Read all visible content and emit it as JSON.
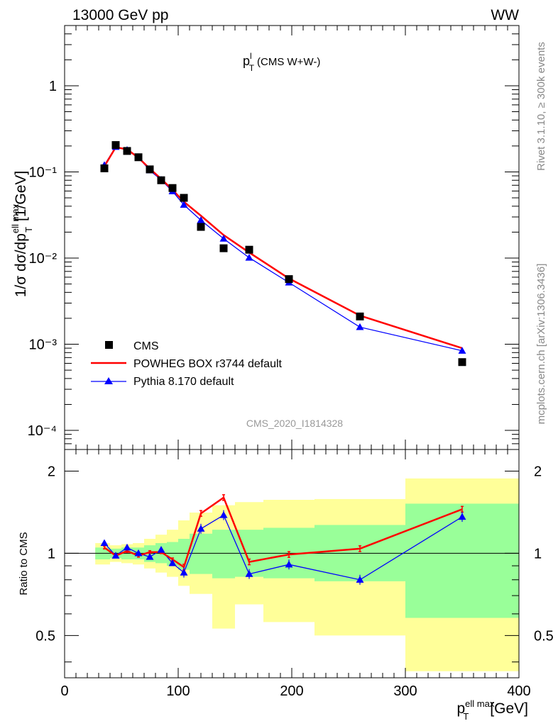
{
  "header": {
    "left": "13000 GeV pp",
    "right": "WW"
  },
  "side_labels": {
    "top": "Rivet 3.1.10, ≥ 300k events",
    "bottom": "mcplots.cern.ch [arXiv:1306.3436]"
  },
  "plot_title": {
    "main": "p",
    "sup": "l",
    "sub": "T",
    "rest": "(CMS W+W-)"
  },
  "watermark": "CMS_2020_I1814328",
  "y_label_upper": {
    "prefix": "1/σ dσ/dp",
    "sup": "ell max",
    "sub": "T",
    "unit": "[1/GeV]"
  },
  "y_label_lower": "Ratio to CMS",
  "x_label": {
    "main": "p",
    "sup": "ell max",
    "sub": "T",
    "unit": "[GeV]"
  },
  "colors": {
    "data": "#000000",
    "powheg": "#ff0000",
    "pythia": "#0000ff",
    "band_inner": "#99ff99",
    "band_outer": "#ffff99"
  },
  "chart_data": [
    {
      "type": "scatter",
      "panel": "main",
      "y_scale": "log",
      "xlim": [
        0,
        400
      ],
      "ylim": [
        6e-05,
        5
      ],
      "y_tick_labels": [
        "10⁻⁴",
        "10⁻³",
        "10⁻²",
        "10⁻¹",
        "1"
      ],
      "y_tick_values": [
        0.0001,
        0.001,
        0.01,
        0.1,
        1
      ],
      "legend_position": "bottom-left",
      "series": [
        {
          "name": "CMS",
          "style": "markers",
          "x": [
            35,
            45,
            55,
            65,
            75,
            85,
            95,
            105,
            120,
            140,
            162.5,
            197.5,
            260,
            350
          ],
          "values": [
            0.11,
            0.205,
            0.175,
            0.148,
            0.107,
            0.08,
            0.065,
            0.05,
            0.023,
            0.013,
            0.0125,
            0.0057,
            0.0021,
            0.00062
          ]
        },
        {
          "name": "POWHEG BOX r3744 default",
          "style": "line",
          "x": [
            35,
            45,
            55,
            65,
            75,
            85,
            95,
            105,
            120,
            140,
            162.5,
            197.5,
            260,
            350
          ],
          "values": [
            0.116,
            0.193,
            0.183,
            0.146,
            0.109,
            0.083,
            0.062,
            0.045,
            0.031,
            0.0185,
            0.0116,
            0.0058,
            0.00215,
            0.0009
          ]
        },
        {
          "name": "Pythia 8.170 default",
          "style": "line-markers",
          "x": [
            35,
            45,
            55,
            65,
            75,
            85,
            95,
            105,
            120,
            140,
            162.5,
            197.5,
            260,
            350
          ],
          "values": [
            0.12,
            0.195,
            0.18,
            0.148,
            0.104,
            0.081,
            0.0595,
            0.0415,
            0.0275,
            0.0168,
            0.0101,
            0.0052,
            0.00158,
            0.00084
          ]
        }
      ]
    },
    {
      "type": "line",
      "panel": "ratio",
      "y_scale": "log",
      "xlim": [
        0,
        400
      ],
      "ylim": [
        0.35,
        2.4
      ],
      "xlabel_ticks": [
        "0",
        "100",
        "200",
        "300",
        "400"
      ],
      "x_tick_values": [
        0,
        100,
        200,
        300,
        400
      ],
      "y_tick_labels": [
        "0.5",
        "1",
        "2"
      ],
      "y_tick_values": [
        0.5,
        1,
        2
      ],
      "bins": [
        [
          27,
          40
        ],
        [
          40,
          50
        ],
        [
          50,
          60
        ],
        [
          60,
          70
        ],
        [
          70,
          80
        ],
        [
          80,
          90
        ],
        [
          90,
          100
        ],
        [
          100,
          110
        ],
        [
          110,
          130
        ],
        [
          130,
          150
        ],
        [
          150,
          175
        ],
        [
          175,
          220
        ],
        [
          220,
          300
        ],
        [
          300,
          400
        ]
      ],
      "inner_band": {
        "low": [
          0.95,
          0.96,
          0.95,
          0.95,
          0.93,
          0.92,
          0.9,
          0.87,
          0.84,
          0.81,
          0.82,
          0.81,
          0.79,
          0.58
        ],
        "high": [
          1.05,
          1.04,
          1.05,
          1.05,
          1.07,
          1.09,
          1.1,
          1.13,
          1.18,
          1.22,
          1.22,
          1.24,
          1.27,
          1.52
        ]
      },
      "outer_band": {
        "low": [
          0.91,
          0.93,
          0.92,
          0.91,
          0.88,
          0.85,
          0.82,
          0.76,
          0.71,
          0.53,
          0.65,
          0.56,
          0.5,
          0.37
        ]
      },
      "outer_band_high": [
        1.09,
        1.07,
        1.08,
        1.09,
        1.13,
        1.17,
        1.22,
        1.32,
        1.41,
        1.5,
        1.54,
        1.57,
        1.58,
        1.88
      ],
      "series": [
        {
          "name": "POWHEG BOX r3744 default",
          "x": [
            35,
            45,
            55,
            65,
            75,
            85,
            95,
            105,
            120,
            140,
            162.5,
            197.5,
            260,
            350
          ],
          "values": [
            1.05,
            0.98,
            1.02,
            0.98,
            1.01,
            1.01,
            0.95,
            0.89,
            1.4,
            1.6,
            0.93,
            0.99,
            1.04,
            1.45
          ]
        },
        {
          "name": "Pythia 8.170 default",
          "x": [
            35,
            45,
            55,
            65,
            75,
            85,
            95,
            105,
            120,
            140,
            162.5,
            197.5,
            260,
            350
          ],
          "values": [
            1.09,
            0.98,
            1.05,
            1.0,
            0.97,
            1.03,
            0.92,
            0.85,
            1.23,
            1.38,
            0.84,
            0.91,
            0.8,
            1.36
          ]
        }
      ]
    }
  ]
}
